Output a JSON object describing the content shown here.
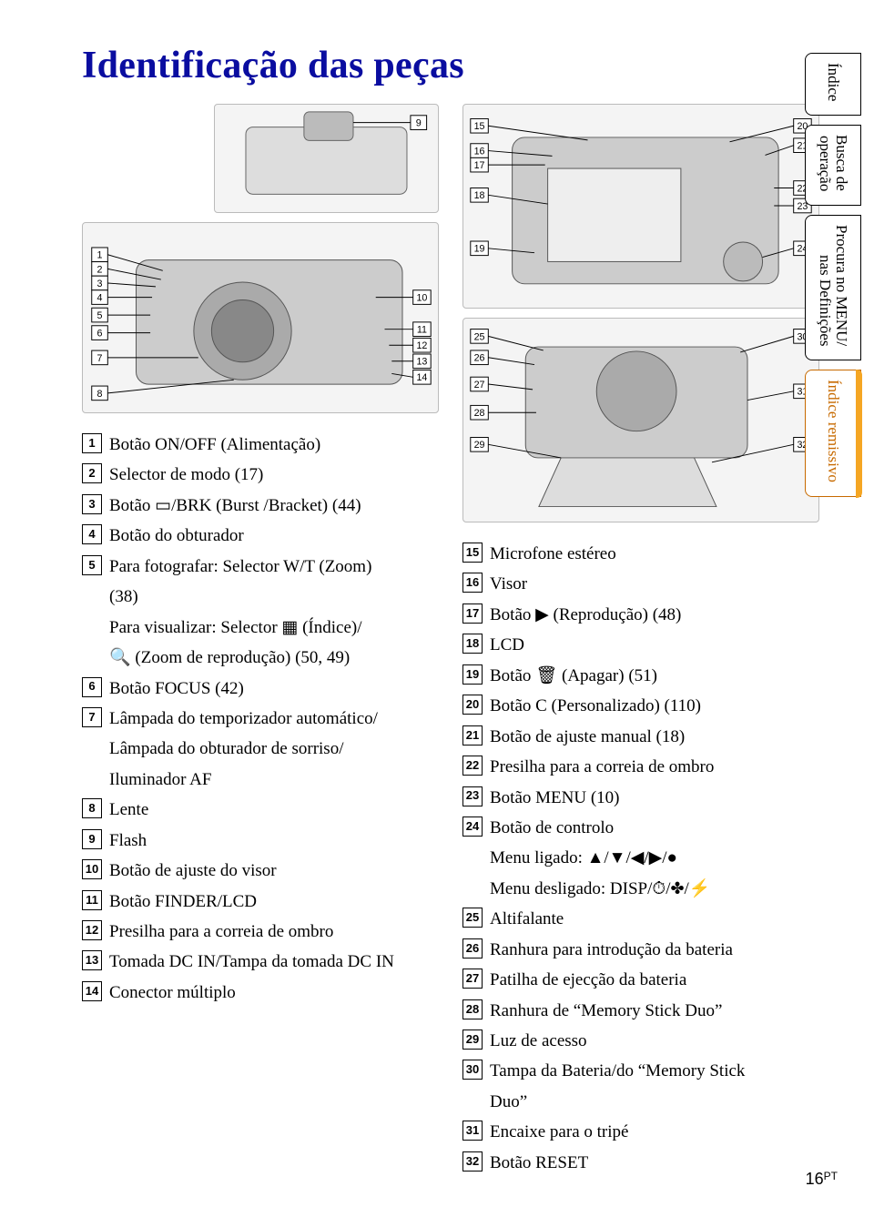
{
  "title": "Identificação das peças",
  "pageNumber": "16",
  "pageNumberSuffix": "PT",
  "tabs": [
    {
      "label": "Índice",
      "orange": false
    },
    {
      "label": "Busca de\noperação",
      "orange": false,
      "two": true
    },
    {
      "label": "Procura no MENU/\nnas Definições",
      "orange": false,
      "two": true
    },
    {
      "label": "Índice remissivo",
      "orange": true
    }
  ],
  "left": {
    "items": [
      {
        "n": "1",
        "text": "Botão ON/OFF (Alimentação)"
      },
      {
        "n": "2",
        "text": "Selector de modo (17)"
      },
      {
        "n": "3",
        "text": "Botão ▭/BRK (Burst /Bracket) (44)"
      },
      {
        "n": "4",
        "text": "Botão do obturador"
      },
      {
        "n": "5",
        "text": "Para fotografar: Selector W/T (Zoom)",
        "cont": [
          "(38)",
          "Para visualizar: Selector ▦ (Índice)/",
          "🔍 (Zoom de reprodução) (50, 49)"
        ]
      },
      {
        "n": "6",
        "text": "Botão FOCUS (42)"
      },
      {
        "n": "7",
        "text": "Lâmpada do temporizador automático/",
        "cont": [
          "Lâmpada do obturador de sorriso/",
          "Iluminador AF"
        ]
      },
      {
        "n": "8",
        "text": "Lente"
      },
      {
        "n": "9",
        "text": "Flash"
      },
      {
        "n": "10",
        "text": "Botão de ajuste do visor"
      },
      {
        "n": "11",
        "text": "Botão FINDER/LCD"
      },
      {
        "n": "12",
        "text": "Presilha para a correia de ombro"
      },
      {
        "n": "13",
        "text": "Tomada DC IN/Tampa da tomada DC IN"
      },
      {
        "n": "14",
        "text": "Conector múltiplo"
      }
    ]
  },
  "right": {
    "items": [
      {
        "n": "15",
        "text": "Microfone estéreo"
      },
      {
        "n": "16",
        "text": "Visor"
      },
      {
        "n": "17",
        "text": "Botão ▶ (Reprodução) (48)"
      },
      {
        "n": "18",
        "text": "LCD"
      },
      {
        "n": "19",
        "text": "Botão 🗑 (Apagar) (51)"
      },
      {
        "n": "20",
        "text": "Botão C (Personalizado) (110)"
      },
      {
        "n": "21",
        "text": "Botão de ajuste manual (18)"
      },
      {
        "n": "22",
        "text": "Presilha para a correia de ombro"
      },
      {
        "n": "23",
        "text": "Botão MENU (10)"
      },
      {
        "n": "24",
        "text": "Botão de controlo",
        "cont": [
          "Menu ligado: ▲/▼/◀/▶/●",
          "Menu desligado: DISP/⏱/✤/⚡"
        ]
      },
      {
        "n": "25",
        "text": "Altifalante"
      },
      {
        "n": "26",
        "text": "Ranhura para introdução da bateria"
      },
      {
        "n": "27",
        "text": "Patilha de ejecção da bateria"
      },
      {
        "n": "28",
        "text": "Ranhura de “Memory Stick Duo”"
      },
      {
        "n": "29",
        "text": "Luz de acesso"
      },
      {
        "n": "30",
        "text": "Tampa da Bateria/do “Memory Stick",
        "cont": [
          "Duo”"
        ]
      },
      {
        "n": "31",
        "text": "Encaixe para o tripé"
      },
      {
        "n": "32",
        "text": "Botão RESET"
      }
    ]
  },
  "figs": {
    "flash": "[flash/top view — callout 9]",
    "top": "[camera top view — callouts 1–14]",
    "back": "[camera rear view — callouts 15–24]",
    "bottom": "[camera bottom view — callouts 25–32]"
  }
}
